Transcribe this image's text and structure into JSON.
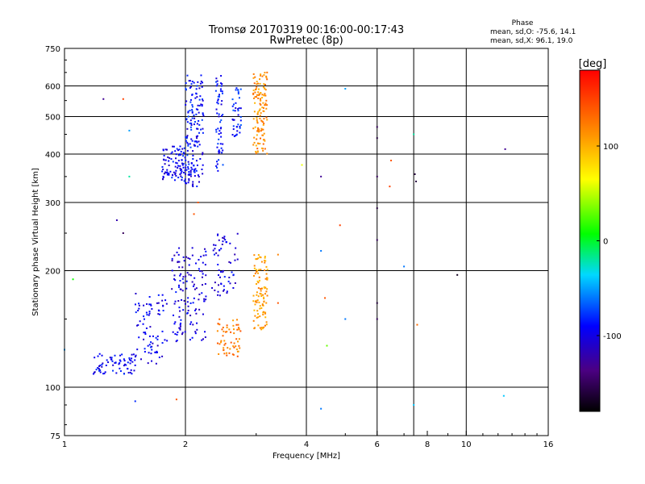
{
  "chart_data": {
    "type": "scatter",
    "title": "Tromsø 20170319 00:16:00-00:17:43",
    "subtitle": "RwPretec (8p)",
    "xlabel": "Frequency [MHz]",
    "ylabel": "Stationary phase Virtual Height [km]",
    "x_scale": "log2",
    "y_scale": "log",
    "xlim": [
      1,
      16
    ],
    "ylim": [
      75,
      750
    ],
    "x_ticks": [
      1,
      2,
      4,
      6,
      8,
      10,
      16
    ],
    "x_tick_labels": [
      "1",
      "2",
      "4",
      "6",
      "8",
      "10",
      "16"
    ],
    "x_grid": [
      2,
      4,
      6,
      7.4,
      10
    ],
    "y_ticks": [
      75,
      100,
      200,
      300,
      400,
      500,
      600,
      750
    ],
    "y_tick_labels": [
      "75",
      "100",
      "200",
      "300",
      "400",
      "500",
      "600",
      "750"
    ],
    "y_grid": [
      100,
      200,
      300,
      400,
      500,
      600
    ],
    "grid": true,
    "colorbar": {
      "label": "[deg]",
      "range": [
        -180,
        180
      ],
      "ticks": [
        100,
        0,
        -100
      ],
      "tick_labels": [
        "100",
        "0",
        "-100"
      ]
    },
    "stats": {
      "heading": "Phase",
      "o_line": "mean, sd,O: -75.6, 14.1",
      "x_line": "mean, sd,X:  96.1, 19.0"
    },
    "clusters": [
      {
        "f0": 1.75,
        "f1": 2.0,
        "h0": 340,
        "h1": 420,
        "phase": -95,
        "n": 90
      },
      {
        "f0": 2.0,
        "f1": 2.22,
        "h0": 330,
        "h1": 640,
        "phase": -92,
        "n": 160
      },
      {
        "f0": 2.38,
        "f1": 2.48,
        "h0": 360,
        "h1": 640,
        "phase": -88,
        "n": 60
      },
      {
        "f0": 2.62,
        "f1": 2.75,
        "h0": 440,
        "h1": 600,
        "phase": -85,
        "n": 40
      },
      {
        "f0": 2.95,
        "f1": 3.2,
        "h0": 400,
        "h1": 650,
        "phase": 115,
        "n": 130
      },
      {
        "f0": 1.18,
        "f1": 1.5,
        "h0": 108,
        "h1": 122,
        "phase": -95,
        "n": 70
      },
      {
        "f0": 1.5,
        "f1": 1.8,
        "h0": 115,
        "h1": 175,
        "phase": -98,
        "n": 80
      },
      {
        "f0": 1.85,
        "f1": 2.25,
        "h0": 130,
        "h1": 230,
        "phase": -102,
        "n": 130
      },
      {
        "f0": 2.3,
        "f1": 2.7,
        "h0": 170,
        "h1": 250,
        "phase": -100,
        "n": 60
      },
      {
        "f0": 2.4,
        "f1": 2.75,
        "h0": 120,
        "h1": 150,
        "phase": 125,
        "n": 60
      },
      {
        "f0": 2.95,
        "f1": 3.2,
        "h0": 140,
        "h1": 220,
        "phase": 110,
        "n": 100
      }
    ],
    "isolated_points": [
      {
        "f": 1.0,
        "h": 125,
        "phase": -50
      },
      {
        "f": 1.05,
        "h": 190,
        "phase": 10
      },
      {
        "f": 1.25,
        "h": 555,
        "phase": -130
      },
      {
        "f": 1.4,
        "h": 555,
        "phase": 150
      },
      {
        "f": 1.45,
        "h": 460,
        "phase": -50
      },
      {
        "f": 1.45,
        "h": 350,
        "phase": -20
      },
      {
        "f": 1.35,
        "h": 270,
        "phase": -120
      },
      {
        "f": 1.4,
        "h": 250,
        "phase": -150
      },
      {
        "f": 1.5,
        "h": 92,
        "phase": -80
      },
      {
        "f": 1.9,
        "h": 93,
        "phase": 140
      },
      {
        "f": 2.1,
        "h": 280,
        "phase": 140
      },
      {
        "f": 2.15,
        "h": 300,
        "phase": 140
      },
      {
        "f": 3.4,
        "h": 165,
        "phase": 140
      },
      {
        "f": 3.4,
        "h": 220,
        "phase": 120
      },
      {
        "f": 3.9,
        "h": 375,
        "phase": 60
      },
      {
        "f": 4.35,
        "h": 350,
        "phase": -130
      },
      {
        "f": 4.35,
        "h": 225,
        "phase": -60
      },
      {
        "f": 4.45,
        "h": 170,
        "phase": 140
      },
      {
        "f": 4.5,
        "h": 128,
        "phase": 30
      },
      {
        "f": 4.35,
        "h": 88,
        "phase": -60
      },
      {
        "f": 4.85,
        "h": 262,
        "phase": 150
      },
      {
        "f": 5.0,
        "h": 590,
        "phase": -50
      },
      {
        "f": 5.0,
        "h": 150,
        "phase": -60
      },
      {
        "f": 6.0,
        "h": 470,
        "phase": -150
      },
      {
        "f": 6.0,
        "h": 440,
        "phase": -160
      },
      {
        "f": 6.0,
        "h": 350,
        "phase": -150
      },
      {
        "f": 6.0,
        "h": 290,
        "phase": -160
      },
      {
        "f": 6.0,
        "h": 240,
        "phase": -150
      },
      {
        "f": 6.0,
        "h": 165,
        "phase": -160
      },
      {
        "f": 6.0,
        "h": 150,
        "phase": -150
      },
      {
        "f": 6.45,
        "h": 330,
        "phase": 150
      },
      {
        "f": 6.5,
        "h": 385,
        "phase": 140
      },
      {
        "f": 7.0,
        "h": 205,
        "phase": -60
      },
      {
        "f": 7.4,
        "h": 450,
        "phase": -20
      },
      {
        "f": 7.45,
        "h": 355,
        "phase": -160
      },
      {
        "f": 7.5,
        "h": 340,
        "phase": -160
      },
      {
        "f": 7.55,
        "h": 145,
        "phase": 130
      },
      {
        "f": 7.4,
        "h": 90,
        "phase": -40
      },
      {
        "f": 9.5,
        "h": 195,
        "phase": -170
      },
      {
        "f": 12.5,
        "h": 412,
        "phase": -130
      },
      {
        "f": 12.4,
        "h": 95,
        "phase": -40
      }
    ]
  }
}
